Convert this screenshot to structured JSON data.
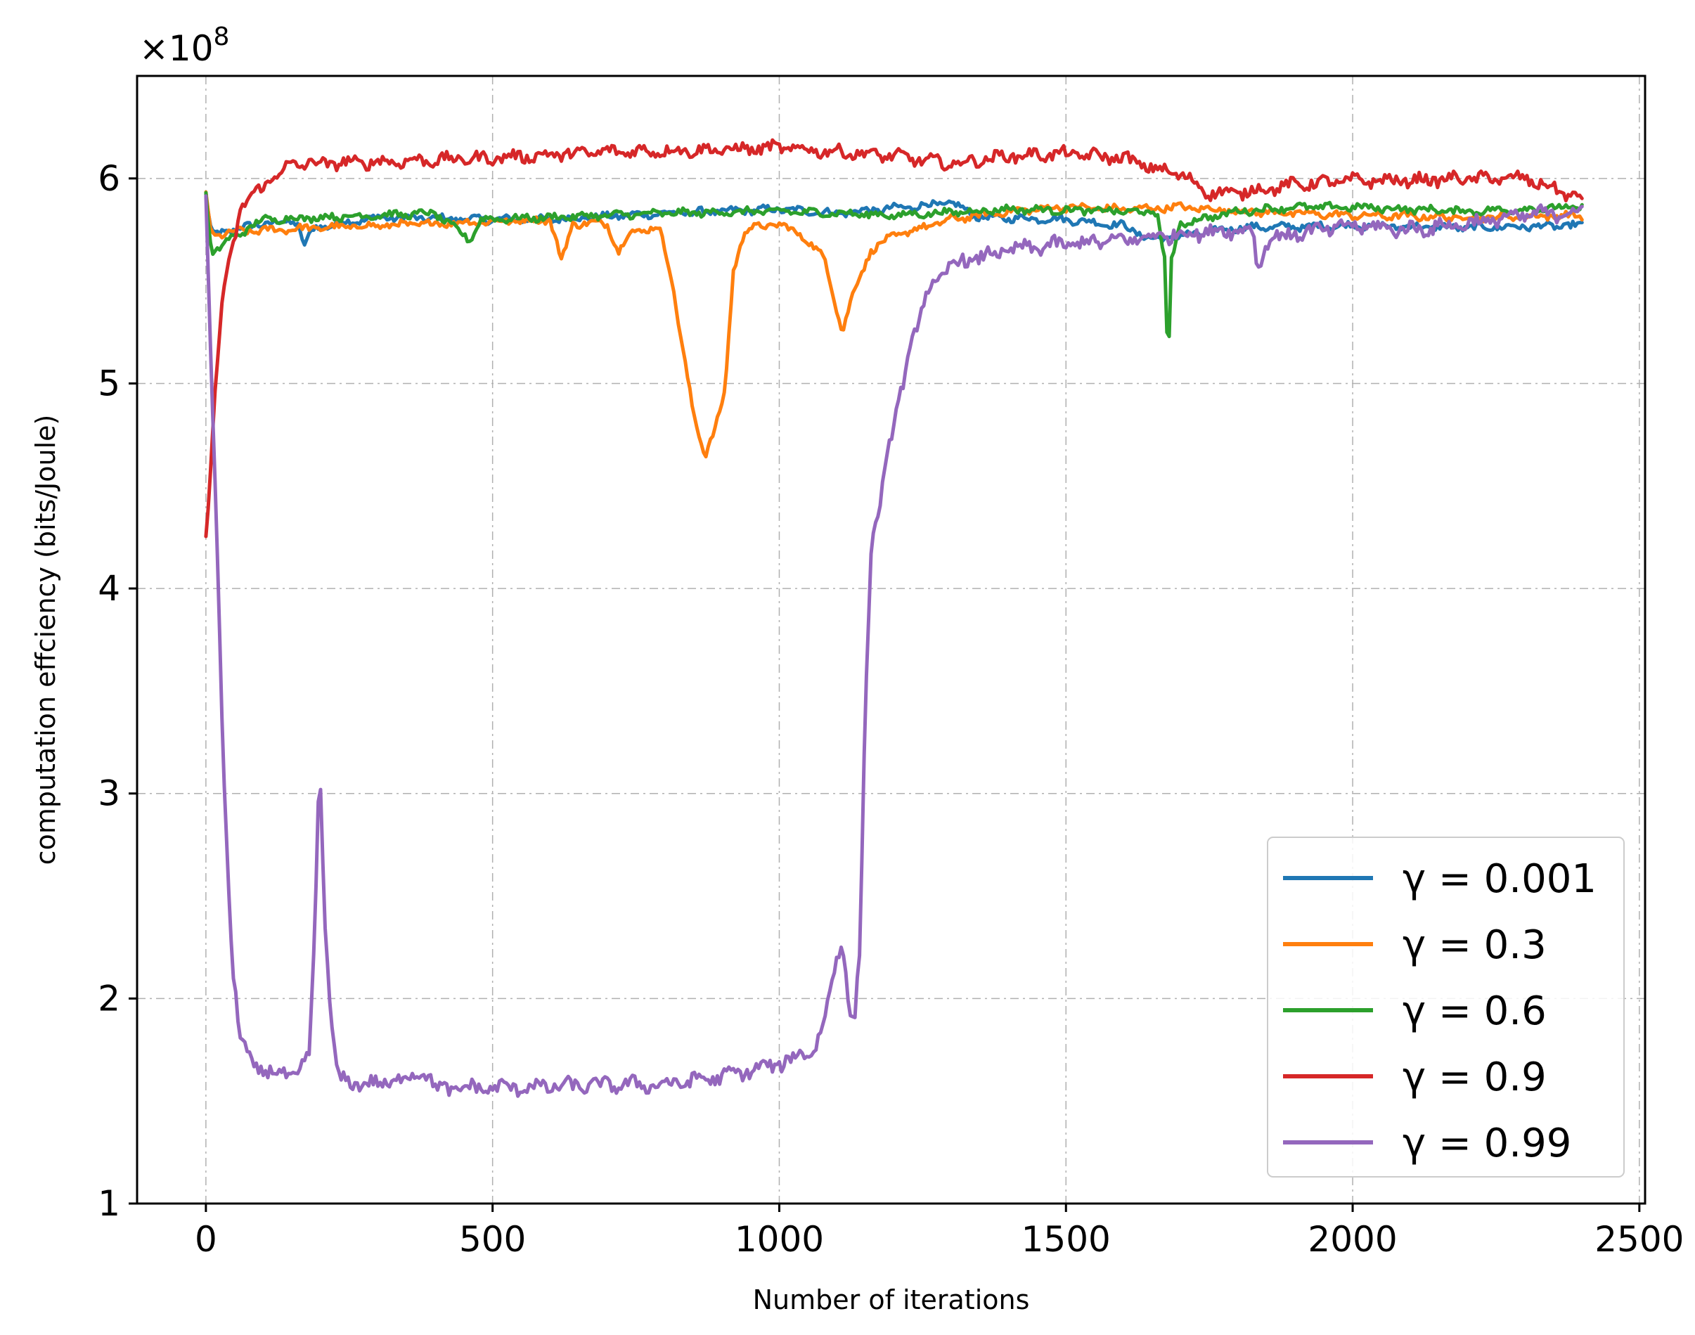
{
  "chart_data": {
    "type": "line",
    "xlabel": "Number of iterations",
    "ylabel": "computation effciency (bits/Joule)",
    "y_exponent_label": "×10",
    "y_exponent_power": "8",
    "xlim": [
      -120,
      2510
    ],
    "ylim": [
      1.0,
      6.5
    ],
    "x_ticks": [
      0,
      500,
      1000,
      1500,
      2000,
      2500
    ],
    "x_tick_labels": [
      "0",
      "500",
      "1000",
      "1500",
      "2000",
      "2500"
    ],
    "y_ticks": [
      1,
      2,
      3,
      4,
      5,
      6
    ],
    "y_tick_labels": [
      "1",
      "2",
      "3",
      "4",
      "5",
      "6"
    ],
    "grid": true,
    "legend_position": "lower-right",
    "series": [
      {
        "name": "γ = 0.001",
        "color": "#1f77b4",
        "base": [
          [
            0,
            5.92
          ],
          [
            10,
            5.72
          ],
          [
            30,
            5.74
          ],
          [
            100,
            5.78
          ],
          [
            160,
            5.79
          ],
          [
            170,
            5.67
          ],
          [
            190,
            5.76
          ],
          [
            300,
            5.81
          ],
          [
            500,
            5.8
          ],
          [
            600,
            5.8
          ],
          [
            800,
            5.83
          ],
          [
            1000,
            5.85
          ],
          [
            1100,
            5.83
          ],
          [
            1300,
            5.88
          ],
          [
            1350,
            5.81
          ],
          [
            1500,
            5.8
          ],
          [
            1600,
            5.77
          ],
          [
            1650,
            5.7
          ],
          [
            1700,
            5.72
          ],
          [
            1800,
            5.76
          ],
          [
            2000,
            5.77
          ],
          [
            2200,
            5.76
          ],
          [
            2400,
            5.77
          ]
        ],
        "noise": 0.015
      },
      {
        "name": "γ = 0.3",
        "color": "#ff7f0e",
        "base": [
          [
            0,
            5.92
          ],
          [
            10,
            5.72
          ],
          [
            50,
            5.74
          ],
          [
            200,
            5.76
          ],
          [
            400,
            5.78
          ],
          [
            600,
            5.8
          ],
          [
            620,
            5.6
          ],
          [
            640,
            5.78
          ],
          [
            700,
            5.78
          ],
          [
            720,
            5.64
          ],
          [
            740,
            5.74
          ],
          [
            790,
            5.76
          ],
          [
            810,
            5.55
          ],
          [
            830,
            5.2
          ],
          [
            850,
            4.85
          ],
          [
            870,
            4.65
          ],
          [
            890,
            4.8
          ],
          [
            905,
            4.95
          ],
          [
            920,
            5.55
          ],
          [
            940,
            5.75
          ],
          [
            1000,
            5.78
          ],
          [
            1050,
            5.7
          ],
          [
            1080,
            5.6
          ],
          [
            1110,
            5.25
          ],
          [
            1130,
            5.45
          ],
          [
            1160,
            5.65
          ],
          [
            1200,
            5.72
          ],
          [
            1300,
            5.8
          ],
          [
            1400,
            5.84
          ],
          [
            1500,
            5.86
          ],
          [
            1600,
            5.85
          ],
          [
            1700,
            5.86
          ],
          [
            1800,
            5.84
          ],
          [
            1900,
            5.83
          ],
          [
            2000,
            5.82
          ],
          [
            2200,
            5.81
          ],
          [
            2400,
            5.82
          ]
        ],
        "noise": 0.015
      },
      {
        "name": "γ = 0.6",
        "color": "#2ca02c",
        "base": [
          [
            0,
            5.92
          ],
          [
            10,
            5.63
          ],
          [
            40,
            5.7
          ],
          [
            100,
            5.8
          ],
          [
            400,
            5.83
          ],
          [
            460,
            5.7
          ],
          [
            480,
            5.8
          ],
          [
            600,
            5.81
          ],
          [
            800,
            5.83
          ],
          [
            1000,
            5.84
          ],
          [
            1200,
            5.82
          ],
          [
            1400,
            5.85
          ],
          [
            1600,
            5.84
          ],
          [
            1660,
            5.83
          ],
          [
            1672,
            5.6
          ],
          [
            1678,
            5.05
          ],
          [
            1684,
            5.6
          ],
          [
            1700,
            5.78
          ],
          [
            1800,
            5.84
          ],
          [
            1900,
            5.86
          ],
          [
            2000,
            5.86
          ],
          [
            2200,
            5.84
          ],
          [
            2400,
            5.86
          ]
        ],
        "noise": 0.015
      },
      {
        "name": "γ = 0.9",
        "color": "#d62728",
        "base": [
          [
            0,
            4.25
          ],
          [
            15,
            4.9
          ],
          [
            30,
            5.45
          ],
          [
            60,
            5.85
          ],
          [
            100,
            5.97
          ],
          [
            150,
            6.07
          ],
          [
            300,
            6.08
          ],
          [
            500,
            6.1
          ],
          [
            700,
            6.13
          ],
          [
            900,
            6.14
          ],
          [
            1000,
            6.15
          ],
          [
            1200,
            6.11
          ],
          [
            1300,
            6.07
          ],
          [
            1400,
            6.11
          ],
          [
            1500,
            6.12
          ],
          [
            1600,
            6.1
          ],
          [
            1650,
            6.05
          ],
          [
            1700,
            6.02
          ],
          [
            1750,
            5.93
          ],
          [
            1800,
            5.93
          ],
          [
            1900,
            5.97
          ],
          [
            2000,
            5.99
          ],
          [
            2100,
            5.99
          ],
          [
            2200,
            6.0
          ],
          [
            2300,
            6.0
          ],
          [
            2400,
            5.9
          ]
        ],
        "noise": 0.025
      },
      {
        "name": "γ = 0.99",
        "color": "#9467bd",
        "base": [
          [
            0,
            5.92
          ],
          [
            5,
            5.4
          ],
          [
            15,
            4.6
          ],
          [
            30,
            3.2
          ],
          [
            45,
            2.2
          ],
          [
            60,
            1.8
          ],
          [
            80,
            1.68
          ],
          [
            120,
            1.63
          ],
          [
            160,
            1.63
          ],
          [
            180,
            1.72
          ],
          [
            190,
            2.3
          ],
          [
            198,
            3.2
          ],
          [
            206,
            2.5
          ],
          [
            215,
            2.0
          ],
          [
            230,
            1.6
          ],
          [
            300,
            1.58
          ],
          [
            360,
            1.62
          ],
          [
            380,
            1.66
          ],
          [
            400,
            1.56
          ],
          [
            600,
            1.57
          ],
          [
            700,
            1.58
          ],
          [
            800,
            1.58
          ],
          [
            900,
            1.62
          ],
          [
            1000,
            1.68
          ],
          [
            1060,
            1.75
          ],
          [
            1080,
            1.9
          ],
          [
            1100,
            2.2
          ],
          [
            1110,
            2.3
          ],
          [
            1120,
            2.0
          ],
          [
            1130,
            1.85
          ],
          [
            1140,
            2.2
          ],
          [
            1150,
            3.4
          ],
          [
            1160,
            4.2
          ],
          [
            1180,
            4.5
          ],
          [
            1200,
            4.8
          ],
          [
            1230,
            5.2
          ],
          [
            1260,
            5.45
          ],
          [
            1300,
            5.58
          ],
          [
            1400,
            5.65
          ],
          [
            1500,
            5.68
          ],
          [
            1600,
            5.7
          ],
          [
            1700,
            5.73
          ],
          [
            1800,
            5.75
          ],
          [
            1825,
            5.75
          ],
          [
            1835,
            5.55
          ],
          [
            1850,
            5.7
          ],
          [
            1900,
            5.73
          ],
          [
            2000,
            5.77
          ],
          [
            2100,
            5.75
          ],
          [
            2200,
            5.78
          ],
          [
            2300,
            5.82
          ],
          [
            2400,
            5.84
          ]
        ],
        "noise": 0.03
      }
    ]
  }
}
